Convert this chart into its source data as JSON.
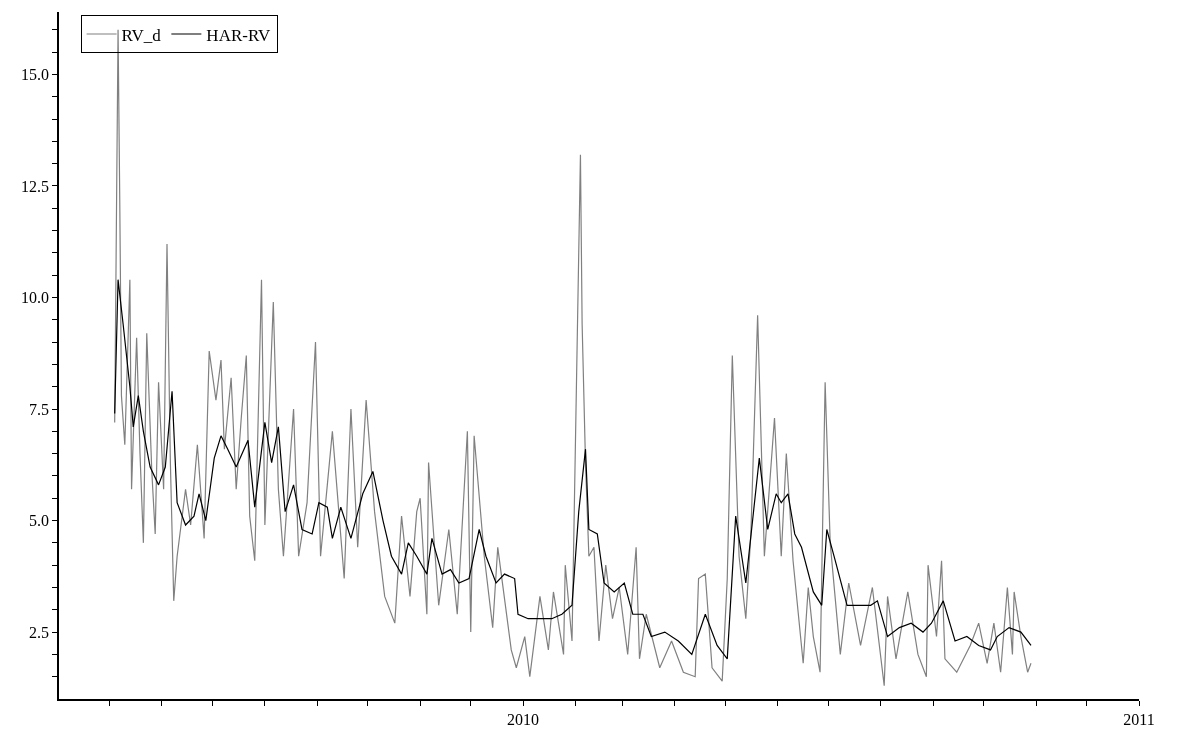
{
  "chart_data": {
    "type": "line",
    "xlim": [
      "2009-04-01",
      "2011-01-01"
    ],
    "xticks": [
      {
        "value": "2009-05-01",
        "label": null
      },
      {
        "value": "2009-06-01",
        "label": null
      },
      {
        "value": "2009-07-01",
        "label": null
      },
      {
        "value": "2009-08-01",
        "label": null
      },
      {
        "value": "2009-09-01",
        "label": null
      },
      {
        "value": "2009-10-01",
        "label": null
      },
      {
        "value": "2009-11-01",
        "label": null
      },
      {
        "value": "2009-12-01",
        "label": null
      },
      {
        "value": "2010-01-01",
        "label": "2010"
      },
      {
        "value": "2010-02-01",
        "label": null
      },
      {
        "value": "2010-03-01",
        "label": null
      },
      {
        "value": "2010-04-01",
        "label": null
      },
      {
        "value": "2010-05-01",
        "label": null
      },
      {
        "value": "2010-06-01",
        "label": null
      },
      {
        "value": "2010-07-01",
        "label": null
      },
      {
        "value": "2010-08-01",
        "label": null
      },
      {
        "value": "2010-09-01",
        "label": null
      },
      {
        "value": "2010-10-01",
        "label": null
      },
      {
        "value": "2010-11-01",
        "label": null
      },
      {
        "value": "2010-12-01",
        "label": null
      },
      {
        "value": "2011-01-01",
        "label": "2011"
      }
    ],
    "ylim": [
      1.0,
      16.4
    ],
    "yticks": [
      {
        "value": 1.5,
        "label": null
      },
      {
        "value": 2.0,
        "label": null
      },
      2.5,
      {
        "value": 3.0,
        "label": null
      },
      {
        "value": 3.5,
        "label": null
      },
      {
        "value": 4.0,
        "label": null
      },
      {
        "value": 4.5,
        "label": null
      },
      {
        "value": 5,
        "label": "5.0"
      },
      {
        "value": 5.5,
        "label": null
      },
      {
        "value": 6.0,
        "label": null
      },
      {
        "value": 6.5,
        "label": null
      },
      {
        "value": 7.0,
        "label": null
      },
      7.5,
      {
        "value": 8.0,
        "label": null
      },
      {
        "value": 8.5,
        "label": null
      },
      {
        "value": 9.0,
        "label": null
      },
      {
        "value": 9.5,
        "label": null
      },
      {
        "value": 10,
        "label": "10.0"
      },
      {
        "value": 10.5,
        "label": null
      },
      {
        "value": 11.0,
        "label": null
      },
      {
        "value": 11.5,
        "label": null
      },
      {
        "value": 12.0,
        "label": null
      },
      12.5,
      {
        "value": 13.0,
        "label": null
      },
      {
        "value": 13.5,
        "label": null
      },
      {
        "value": 14.0,
        "label": null
      },
      {
        "value": 14.5,
        "label": null
      },
      {
        "value": 15,
        "label": "15.0"
      },
      {
        "value": 15.5,
        "label": null
      },
      {
        "value": 16.0,
        "label": null
      }
    ],
    "legend": "top left",
    "marker": "none",
    "line_style": "solid",
    "series": [
      {
        "name": "RV_d",
        "color": "#808080",
        "x": [
          "2009-05-04",
          "2009-05-06",
          "2009-05-07",
          "2009-05-08",
          "2009-05-10",
          "2009-05-13",
          "2009-05-14",
          "2009-05-17",
          "2009-05-19",
          "2009-05-21",
          "2009-05-23",
          "2009-05-26",
          "2009-05-28",
          "2009-05-30",
          "2009-06-02",
          "2009-06-04",
          "2009-06-06",
          "2009-06-08",
          "2009-06-10",
          "2009-06-15",
          "2009-06-18",
          "2009-06-22",
          "2009-06-26",
          "2009-06-29",
          "2009-07-03",
          "2009-07-06",
          "2009-07-08",
          "2009-07-12",
          "2009-07-15",
          "2009-07-18",
          "2009-07-21",
          "2009-07-23",
          "2009-07-26",
          "2009-07-30",
          "2009-08-01",
          "2009-08-06",
          "2009-08-09",
          "2009-08-12",
          "2009-08-18",
          "2009-08-21",
          "2009-08-26",
          "2009-08-31",
          "2009-09-03",
          "2009-09-10",
          "2009-09-17",
          "2009-09-21",
          "2009-09-25",
          "2009-09-30",
          "2009-10-05",
          "2009-10-11",
          "2009-10-17",
          "2009-10-21",
          "2009-10-26",
          "2009-10-30",
          "2009-11-01",
          "2009-11-05",
          "2009-11-06",
          "2009-11-12",
          "2009-11-18",
          "2009-11-23",
          "2009-11-29",
          "2009-12-01",
          "2009-12-03",
          "2009-12-09",
          "2009-12-14",
          "2009-12-17",
          "2009-12-25",
          "2009-12-28",
          "2010-01-02",
          "2010-01-05",
          "2010-01-11",
          "2010-01-16",
          "2010-01-19",
          "2010-01-25",
          "2010-01-26",
          "2010-01-30",
          "2010-02-04",
          "2010-02-05",
          "2010-02-07",
          "2010-02-09",
          "2010-02-12",
          "2010-02-15",
          "2010-02-19",
          "2010-02-23",
          "2010-02-27",
          "2010-03-04",
          "2010-03-09",
          "2010-03-11",
          "2010-03-15",
          "2010-03-23",
          "2010-03-30",
          "2010-04-06",
          "2010-04-13",
          "2010-04-15",
          "2010-04-19",
          "2010-04-23",
          "2010-04-29",
          "2010-05-02",
          "2010-05-05",
          "2010-05-09",
          "2010-05-13",
          "2010-05-16",
          "2010-05-20",
          "2010-05-24",
          "2010-05-30",
          "2010-06-03",
          "2010-06-06",
          "2010-06-10",
          "2010-06-16",
          "2010-06-19",
          "2010-06-22",
          "2010-06-26",
          "2010-06-29",
          "2010-07-02",
          "2010-07-08",
          "2010-07-13",
          "2010-07-20",
          "2010-07-27",
          "2010-08-03",
          "2010-08-05",
          "2010-08-10",
          "2010-08-17",
          "2010-08-23",
          "2010-08-28",
          "2010-08-29",
          "2010-09-03",
          "2010-09-06",
          "2010-09-08",
          "2010-09-15",
          "2010-09-23",
          "2010-09-28",
          "2010-10-03",
          "2010-10-07",
          "2010-10-11",
          "2010-10-15",
          "2010-10-18",
          "2010-10-19",
          "2010-10-23",
          "2010-10-27",
          "2010-10-29"
        ],
        "values": [
          7.2,
          16.0,
          12.2,
          7.8,
          6.7,
          10.4,
          5.7,
          9.1,
          6.5,
          4.5,
          9.2,
          6.1,
          4.7,
          8.1,
          5.7,
          11.2,
          6.3,
          3.2,
          4.2,
          5.7,
          4.9,
          6.7,
          4.6,
          8.8,
          7.7,
          8.6,
          6.6,
          8.2,
          5.7,
          7.3,
          8.7,
          5.1,
          4.1,
          10.4,
          4.9,
          9.9,
          5.7,
          4.2,
          7.5,
          4.2,
          5.4,
          9.0,
          4.2,
          7.0,
          3.7,
          7.5,
          4.4,
          7.7,
          5.2,
          3.3,
          2.7,
          5.1,
          3.3,
          5.2,
          5.5,
          2.9,
          6.3,
          3.1,
          4.8,
          2.9,
          7.0,
          2.5,
          6.9,
          4.2,
          2.6,
          4.4,
          2.1,
          1.7,
          2.4,
          1.5,
          3.3,
          2.1,
          3.4,
          2.0,
          4.0,
          2.3,
          13.2,
          9.4,
          6.3,
          4.2,
          4.4,
          2.3,
          4.0,
          2.8,
          3.5,
          2.0,
          4.4,
          1.9,
          2.9,
          1.7,
          2.3,
          1.6,
          1.5,
          3.7,
          3.8,
          1.7,
          1.4,
          3.7,
          8.7,
          4.2,
          2.8,
          4.7,
          9.6,
          4.2,
          7.3,
          4.2,
          6.5,
          4.1,
          1.8,
          3.5,
          2.4,
          1.6,
          8.1,
          4.5,
          2.0,
          3.6,
          2.2,
          3.5,
          1.3,
          3.3,
          1.9,
          3.4,
          2.0,
          1.5,
          4.0,
          2.4,
          4.1,
          1.9,
          1.6,
          2.2,
          2.7,
          1.8,
          2.7,
          1.6,
          3.5,
          2.0,
          3.4,
          2.4,
          1.6,
          1.8
        ]
      },
      {
        "name": "HAR-RV",
        "color": "#000000",
        "x": [
          "2009-05-04",
          "2009-05-06",
          "2009-05-09",
          "2009-05-13",
          "2009-05-15",
          "2009-05-18",
          "2009-05-21",
          "2009-05-25",
          "2009-05-30",
          "2009-06-03",
          "2009-06-07",
          "2009-06-10",
          "2009-06-15",
          "2009-06-20",
          "2009-06-23",
          "2009-06-27",
          "2009-07-02",
          "2009-07-06",
          "2009-07-10",
          "2009-07-15",
          "2009-07-22",
          "2009-07-26",
          "2009-08-01",
          "2009-08-05",
          "2009-08-09",
          "2009-08-13",
          "2009-08-18",
          "2009-08-23",
          "2009-08-29",
          "2009-09-02",
          "2009-09-07",
          "2009-09-10",
          "2009-09-15",
          "2009-09-21",
          "2009-09-28",
          "2009-10-04",
          "2009-10-10",
          "2009-10-15",
          "2009-10-21",
          "2009-10-25",
          "2009-10-30",
          "2009-11-05",
          "2009-11-08",
          "2009-11-14",
          "2009-11-19",
          "2009-11-24",
          "2009-11-30",
          "2009-12-06",
          "2009-12-10",
          "2009-12-16",
          "2009-12-21",
          "2009-12-27",
          "2009-12-29",
          "2010-01-04",
          "2010-01-11",
          "2010-01-18",
          "2010-01-24",
          "2010-01-30",
          "2010-02-03",
          "2010-02-07",
          "2010-02-09",
          "2010-02-14",
          "2010-02-18",
          "2010-02-24",
          "2010-03-02",
          "2010-03-07",
          "2010-03-13",
          "2010-03-18",
          "2010-03-26",
          "2010-04-03",
          "2010-04-11",
          "2010-04-19",
          "2010-04-26",
          "2010-05-02",
          "2010-05-07",
          "2010-05-13",
          "2010-05-21",
          "2010-05-26",
          "2010-05-31",
          "2010-06-03",
          "2010-06-07",
          "2010-06-11",
          "2010-06-15",
          "2010-06-22",
          "2010-06-27",
          "2010-06-30",
          "2010-07-05",
          "2010-07-12",
          "2010-07-19",
          "2010-07-26",
          "2010-07-30",
          "2010-08-05",
          "2010-08-12",
          "2010-08-19",
          "2010-08-26",
          "2010-08-31",
          "2010-09-07",
          "2010-09-14",
          "2010-09-21",
          "2010-09-28",
          "2010-10-05",
          "2010-10-09",
          "2010-10-16",
          "2010-10-23",
          "2010-10-29"
        ],
        "values": [
          7.4,
          10.4,
          9.4,
          8.0,
          7.1,
          7.8,
          7.0,
          6.2,
          5.8,
          6.2,
          7.9,
          5.4,
          4.9,
          5.1,
          5.6,
          5.0,
          6.4,
          6.9,
          6.6,
          6.2,
          6.8,
          5.3,
          7.2,
          6.3,
          7.1,
          5.2,
          5.8,
          4.8,
          4.7,
          5.4,
          5.3,
          4.6,
          5.3,
          4.6,
          5.6,
          6.1,
          5.0,
          4.2,
          3.8,
          4.5,
          4.2,
          3.8,
          4.6,
          3.8,
          3.9,
          3.6,
          3.7,
          4.8,
          4.2,
          3.6,
          3.8,
          3.7,
          2.9,
          2.8,
          2.8,
          2.8,
          2.9,
          3.1,
          5.2,
          6.6,
          4.8,
          4.7,
          3.6,
          3.4,
          3.6,
          2.9,
          2.9,
          2.4,
          2.5,
          2.3,
          2.0,
          2.9,
          2.2,
          1.9,
          5.1,
          3.6,
          6.4,
          4.8,
          5.6,
          5.4,
          5.6,
          4.7,
          4.4,
          3.4,
          3.1,
          4.8,
          4.1,
          3.1,
          3.1,
          3.1,
          3.2,
          2.4,
          2.6,
          2.7,
          2.5,
          2.7,
          3.2,
          2.3,
          2.4,
          2.2,
          2.1,
          2.4,
          2.6,
          2.5,
          2.2
        ]
      }
    ]
  }
}
